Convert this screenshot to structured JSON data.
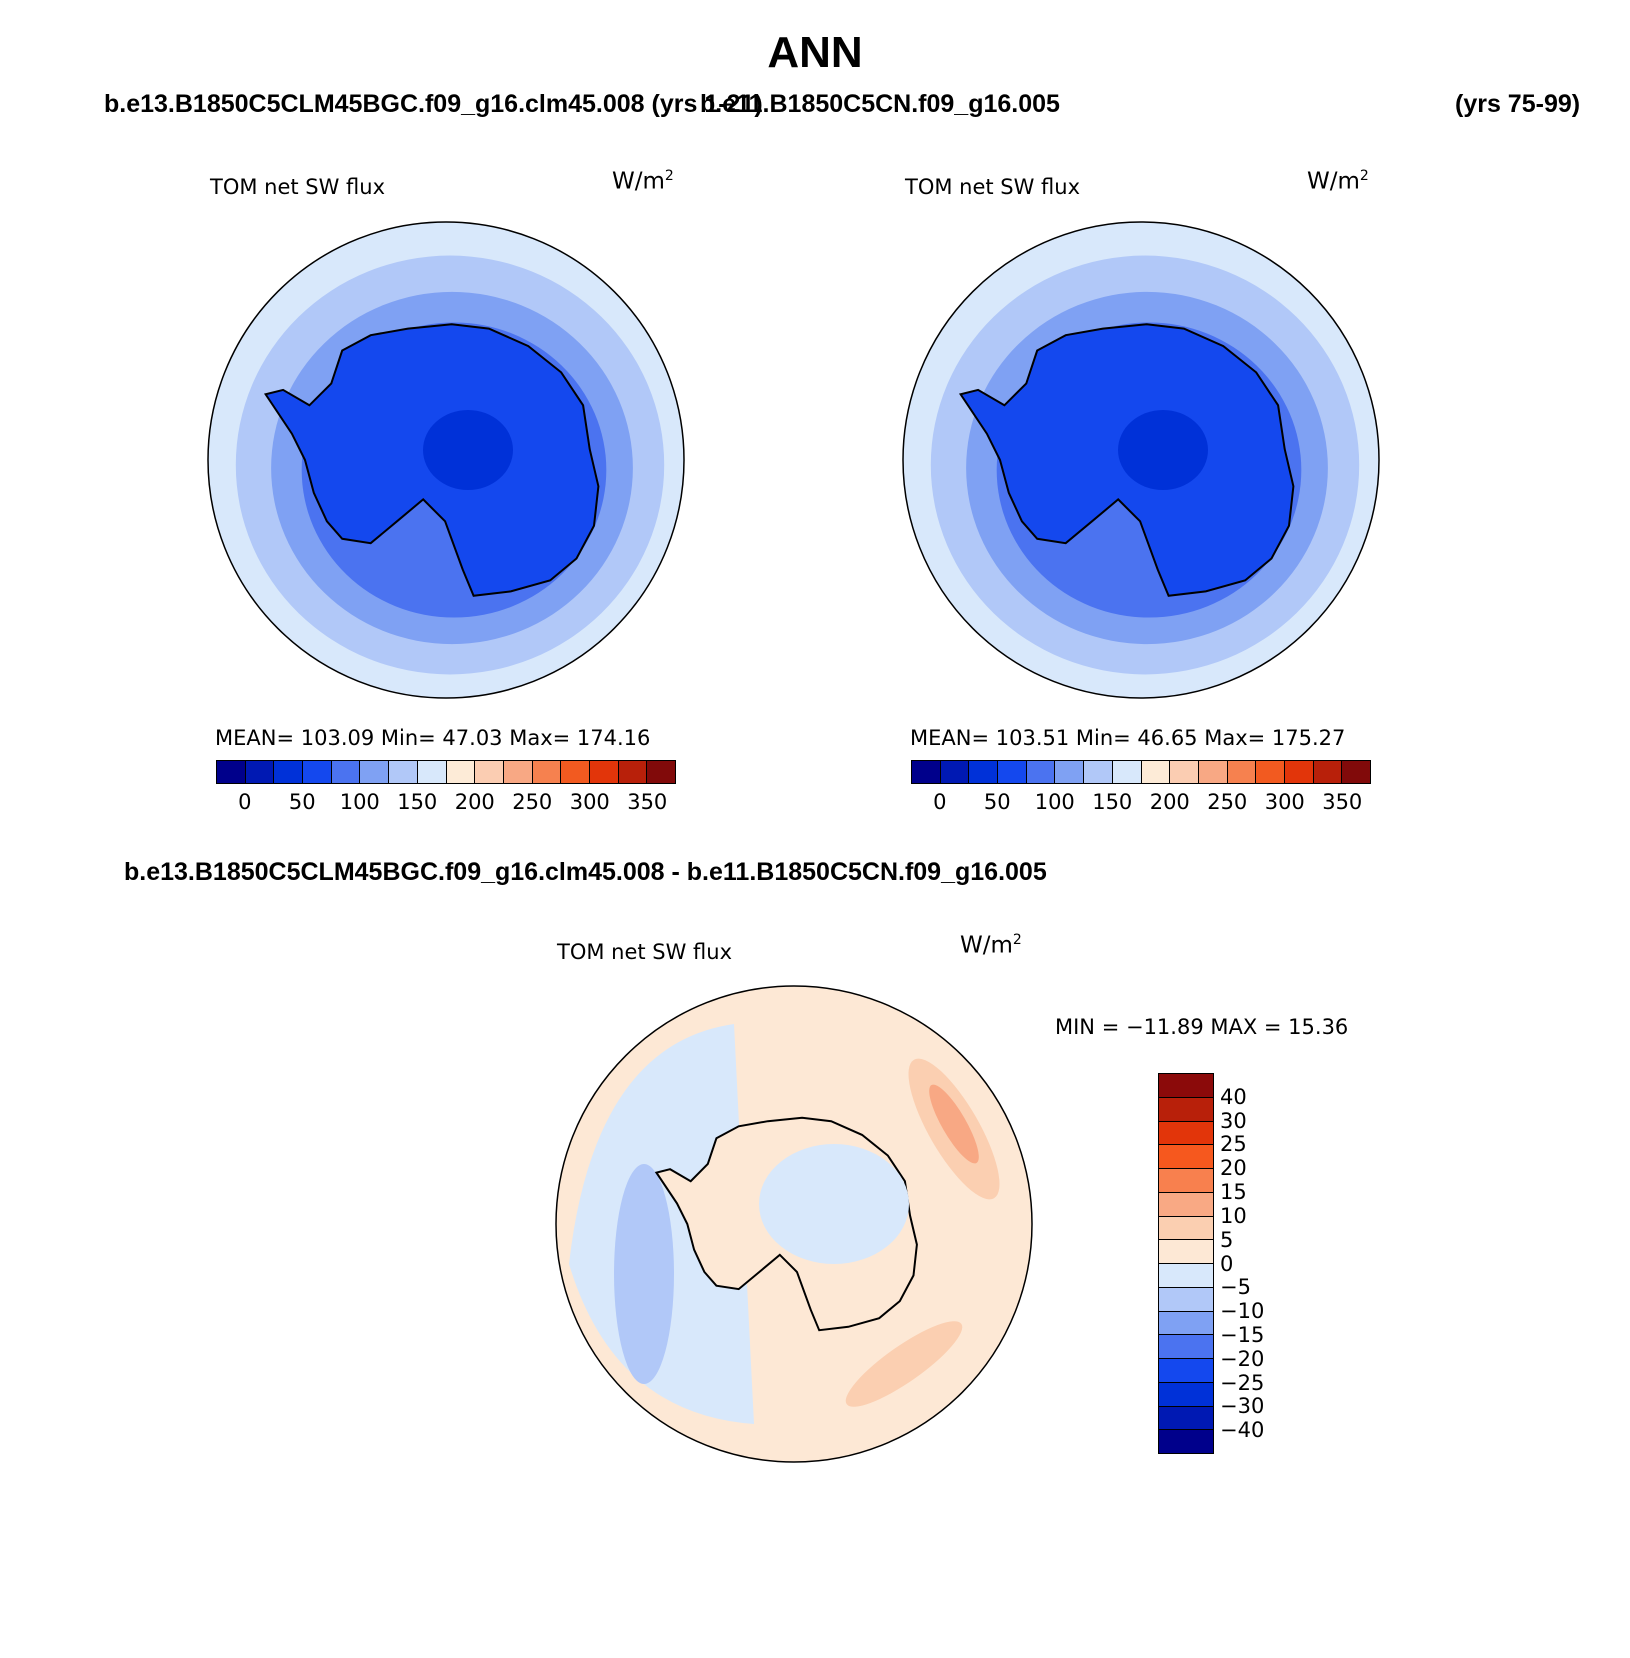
{
  "title": "ANN",
  "header": {
    "case_left": "b.e13.B1850C5CLM45BGC.f09_g16.clm45.008 (yrs 1-21)",
    "case_right": "b.e11.B1850C5CN.f09_g16.005",
    "years_right": "(yrs 75-99)"
  },
  "panels": [
    {
      "title": "TOM net SW flux",
      "units": "W/m",
      "units_sup": "2",
      "stats": "MEAN= 103.09   Min=   47.03   Max= 174.16"
    },
    {
      "title": "TOM net SW flux",
      "units": "W/m",
      "units_sup": "2",
      "stats": "MEAN= 103.51   Min=   46.65   Max= 175.27"
    }
  ],
  "colorbar_abs": {
    "colors": [
      "#00008b",
      "#0019b3",
      "#0031d8",
      "#1448ee",
      "#4b73f0",
      "#7fa1f3",
      "#b1c8f8",
      "#d8e8fb",
      "#fdebd7",
      "#fbcdb2",
      "#f8a884",
      "#f6814f",
      "#f25a20",
      "#e2350a",
      "#b8200a",
      "#810a0a"
    ],
    "ticks": [
      "0",
      "50",
      "100",
      "150",
      "200",
      "250",
      "300",
      "350"
    ]
  },
  "difference": {
    "case_label": "b.e13.B1850C5CLM45BGC.f09_g16.clm45.008 - b.e11.B1850C5CN.f09_g16.005",
    "title": "TOM net SW flux",
    "units": "W/m",
    "units_sup": "2",
    "stats": "MIN = −11.89 MAX =   15.36",
    "colorbar": {
      "colors": [
        "#8b0a0a",
        "#b8200a",
        "#e2350a",
        "#f6581e",
        "#f8804e",
        "#f9a984",
        "#fbcfb1",
        "#fde8d5",
        "#d8e8fb",
        "#b1c8f8",
        "#7fa1f3",
        "#4b73f0",
        "#1448ee",
        "#0031d8",
        "#0019b3",
        "#00008b"
      ],
      "labels": [
        "40",
        "30",
        "25",
        "20",
        "15",
        "10",
        "5",
        "0",
        "−5",
        "−10",
        "−15",
        "−20",
        "−25",
        "−30",
        "−40"
      ]
    }
  },
  "map_colors": {
    "outer": "#d8e8fb",
    "mid": "#b1c8f8",
    "inner": "#7fa1f3",
    "ocean_near": "#4b73f0",
    "land": "#1448ee",
    "plateau": "#0031d8",
    "diff_base": "#fde8d5",
    "diff_blue": "#d8e8fb",
    "diff_blue2": "#b1c8f8",
    "diff_red1": "#fbcfb1",
    "diff_red2": "#f8a884"
  }
}
